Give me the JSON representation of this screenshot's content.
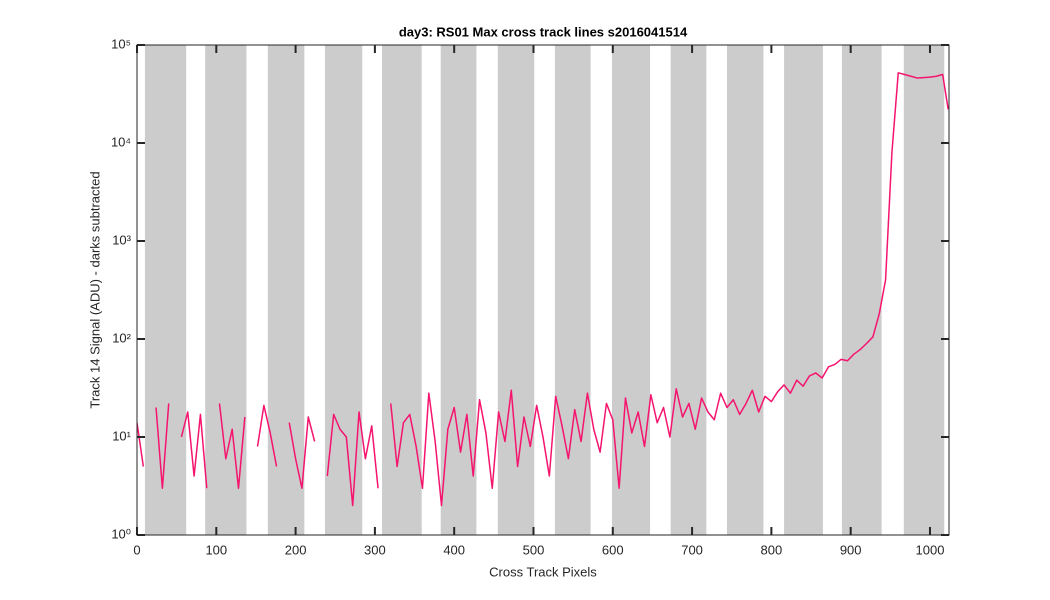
{
  "chart_data": {
    "type": "line",
    "title": "day3: RS01  Max cross track lines  s2016041514",
    "x_label": "Cross Track Pixels",
    "y_label": "Track 14 Signal (ADU) - darks subtracted",
    "yscale": "log",
    "xlim": [
      0,
      1024
    ],
    "ylim": [
      1,
      100000
    ],
    "xticks": [
      0,
      100,
      200,
      300,
      400,
      500,
      600,
      700,
      800,
      900,
      1000
    ],
    "yticks": [
      {
        "value": 1,
        "label": "10⁰"
      },
      {
        "value": 10,
        "label": "10¹"
      },
      {
        "value": 100,
        "label": "10²"
      },
      {
        "value": 1000,
        "label": "10³"
      },
      {
        "value": 10000,
        "label": "10⁴"
      },
      {
        "value": 100000,
        "label": "10⁵"
      }
    ],
    "band_color": "#cccccc",
    "bands": [
      [
        10,
        62
      ],
      [
        86,
        138
      ],
      [
        165,
        211
      ],
      [
        237,
        284
      ],
      [
        309,
        359
      ],
      [
        383,
        428
      ],
      [
        455,
        501
      ],
      [
        527,
        572
      ],
      [
        599,
        647
      ],
      [
        673,
        718
      ],
      [
        744,
        790
      ],
      [
        816,
        865
      ],
      [
        889,
        939
      ],
      [
        967,
        1018
      ]
    ],
    "x": [
      0,
      8,
      16,
      24,
      32,
      40,
      48,
      56,
      64,
      72,
      80,
      88,
      96,
      104,
      112,
      120,
      128,
      136,
      144,
      152,
      160,
      168,
      176,
      184,
      192,
      200,
      208,
      216,
      224,
      232,
      240,
      248,
      256,
      264,
      272,
      280,
      288,
      296,
      304,
      312,
      320,
      328,
      336,
      344,
      352,
      360,
      368,
      376,
      384,
      392,
      400,
      408,
      416,
      424,
      432,
      440,
      448,
      456,
      464,
      472,
      480,
      488,
      496,
      504,
      512,
      520,
      528,
      536,
      544,
      552,
      560,
      568,
      576,
      584,
      592,
      600,
      608,
      616,
      624,
      632,
      640,
      648,
      656,
      664,
      672,
      680,
      688,
      696,
      704,
      712,
      720,
      728,
      736,
      744,
      752,
      760,
      768,
      776,
      784,
      792,
      800,
      808,
      816,
      824,
      832,
      840,
      848,
      856,
      864,
      872,
      880,
      888,
      896,
      904,
      912,
      920,
      928,
      936,
      944,
      952,
      960,
      968,
      976,
      984,
      992,
      1000,
      1008,
      1016,
      1023
    ],
    "series": [
      {
        "color": "#f5146e",
        "values": [
          14,
          5,
          null,
          20,
          3,
          22,
          null,
          10,
          18,
          4,
          17,
          3,
          null,
          22,
          6,
          12,
          3,
          16,
          null,
          8,
          21,
          11,
          5,
          null,
          14,
          6,
          3,
          16,
          9,
          null,
          4,
          17,
          12,
          10,
          2,
          18,
          6,
          13,
          3,
          null,
          22,
          5,
          14,
          17,
          8,
          3,
          28,
          9,
          2,
          12,
          20,
          7,
          17,
          4,
          24,
          11,
          3,
          18,
          9,
          30,
          5,
          16,
          8,
          21,
          10,
          4,
          26,
          13,
          6,
          19,
          9,
          28,
          12,
          7,
          22,
          15,
          3,
          25,
          11,
          18,
          8,
          27,
          14,
          20,
          10,
          31,
          16,
          22,
          12,
          25,
          18,
          15,
          28,
          20,
          24,
          17,
          22,
          30,
          18,
          26,
          23,
          29,
          34,
          28,
          38,
          33,
          42,
          45,
          40,
          52,
          55,
          62,
          60,
          70,
          78,
          90,
          105,
          180,
          400,
          8000,
          52000,
          50000,
          48000,
          46000,
          46500,
          47000,
          48000,
          50000,
          22000
        ]
      }
    ]
  }
}
